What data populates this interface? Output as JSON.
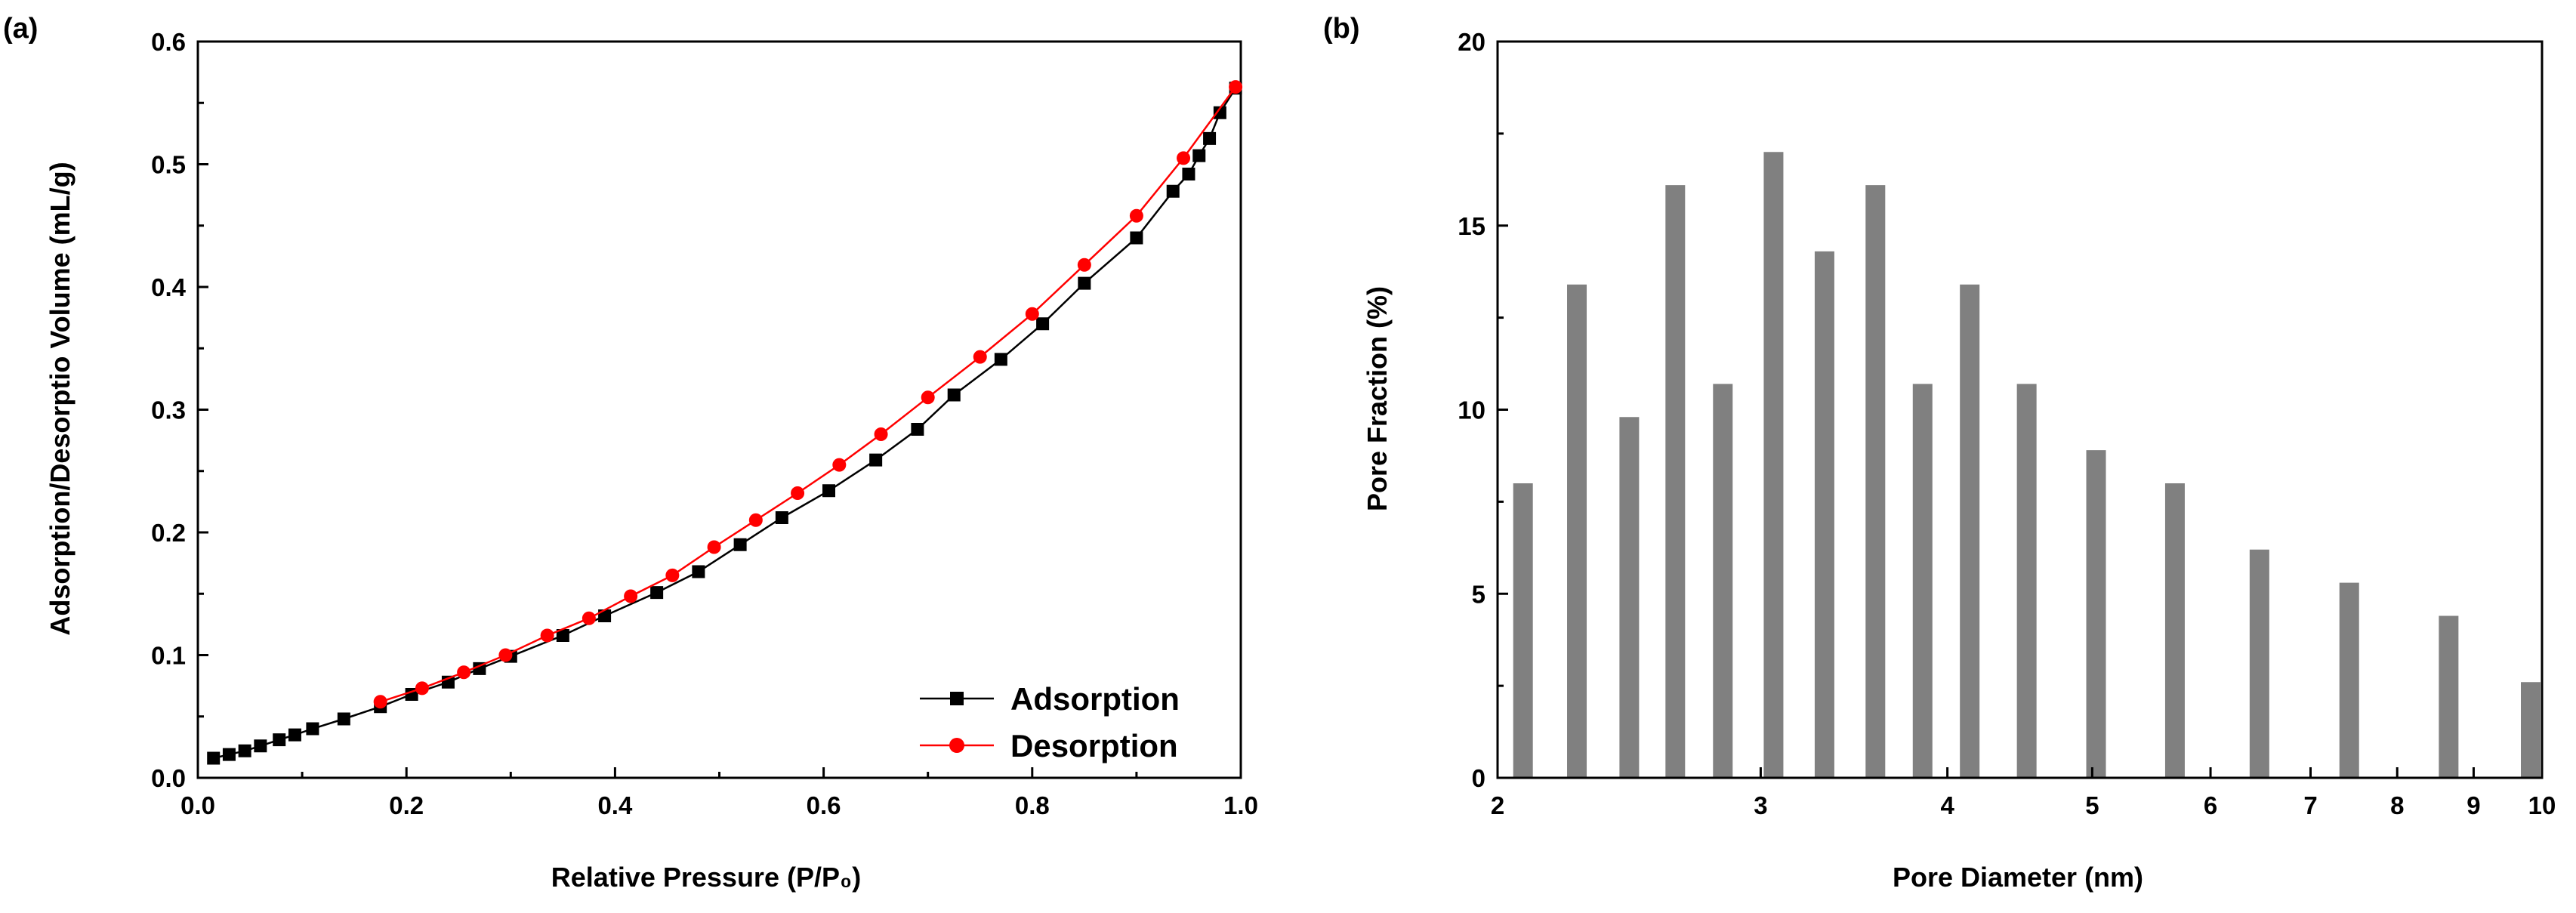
{
  "chart_data": [
    {
      "panel": "(a)",
      "type": "line",
      "xlabel": "Relative Pressure (P/P₀)",
      "ylabel": "Adsorption/Desorptio Volume (mL/g)",
      "xlim": [
        0,
        1.0
      ],
      "ylim": [
        0,
        0.6
      ],
      "x_ticks": [
        0.0,
        0.2,
        0.4,
        0.6,
        0.8,
        1.0
      ],
      "x_tick_labels": [
        "0.0",
        "0.2",
        "0.4",
        "0.6",
        "0.8",
        "1.0"
      ],
      "y_ticks": [
        0.0,
        0.1,
        0.2,
        0.3,
        0.4,
        0.5,
        0.6
      ],
      "y_tick_labels": [
        "0.0",
        "0.1",
        "0.2",
        "0.3",
        "0.4",
        "0.5",
        "0.6"
      ],
      "legend_position": "bottom-right",
      "series": [
        {
          "name": "Adsorption",
          "color": "#000000",
          "marker": "square",
          "x": [
            0.015,
            0.03,
            0.045,
            0.06,
            0.078,
            0.093,
            0.11,
            0.14,
            0.175,
            0.205,
            0.24,
            0.27,
            0.3,
            0.35,
            0.39,
            0.44,
            0.48,
            0.52,
            0.56,
            0.605,
            0.65,
            0.69,
            0.725,
            0.77,
            0.81,
            0.85,
            0.9,
            0.935,
            0.95,
            0.96,
            0.97,
            0.98,
            0.995
          ],
          "y": [
            0.016,
            0.019,
            0.022,
            0.026,
            0.031,
            0.035,
            0.04,
            0.048,
            0.058,
            0.068,
            0.078,
            0.089,
            0.099,
            0.116,
            0.132,
            0.151,
            0.168,
            0.19,
            0.212,
            0.234,
            0.259,
            0.284,
            0.312,
            0.341,
            0.37,
            0.403,
            0.44,
            0.478,
            0.492,
            0.507,
            0.521,
            0.542,
            0.562
          ]
        },
        {
          "name": "Desorption",
          "color": "#ff0000",
          "marker": "circle",
          "x": [
            0.175,
            0.215,
            0.255,
            0.295,
            0.335,
            0.375,
            0.415,
            0.455,
            0.495,
            0.535,
            0.575,
            0.615,
            0.655,
            0.7,
            0.75,
            0.8,
            0.85,
            0.9,
            0.945,
            0.995
          ],
          "y": [
            0.062,
            0.073,
            0.086,
            0.1,
            0.116,
            0.13,
            0.148,
            0.165,
            0.188,
            0.21,
            0.232,
            0.255,
            0.28,
            0.31,
            0.343,
            0.378,
            0.418,
            0.458,
            0.505,
            0.563
          ]
        }
      ]
    },
    {
      "panel": "(b)",
      "type": "bar",
      "xscale": "log",
      "xlabel": "Pore Diameter (nm)",
      "ylabel": "Pore Fraction (%)",
      "xlim": [
        2,
        10
      ],
      "ylim": [
        0,
        20
      ],
      "x_ticks": [
        2,
        3,
        4,
        5,
        6,
        7,
        8,
        9,
        10
      ],
      "x_tick_labels": [
        "2",
        "3",
        "4",
        "5",
        "6",
        "7",
        "8",
        "9",
        "10"
      ],
      "y_ticks": [
        0,
        5,
        10,
        15,
        20
      ],
      "y_tick_labels": [
        "0",
        "5",
        "10",
        "15",
        "20"
      ],
      "bar_color": "#808080",
      "x": [
        2.08,
        2.26,
        2.45,
        2.63,
        2.83,
        3.06,
        3.31,
        3.58,
        3.85,
        4.14,
        4.52,
        5.03,
        5.68,
        6.47,
        7.43,
        8.66,
        10.0
      ],
      "values": [
        8.0,
        13.4,
        9.8,
        16.1,
        10.7,
        17.0,
        14.3,
        16.1,
        10.7,
        13.4,
        10.7,
        8.9,
        8.0,
        6.2,
        5.3,
        4.4,
        2.6
      ]
    }
  ]
}
